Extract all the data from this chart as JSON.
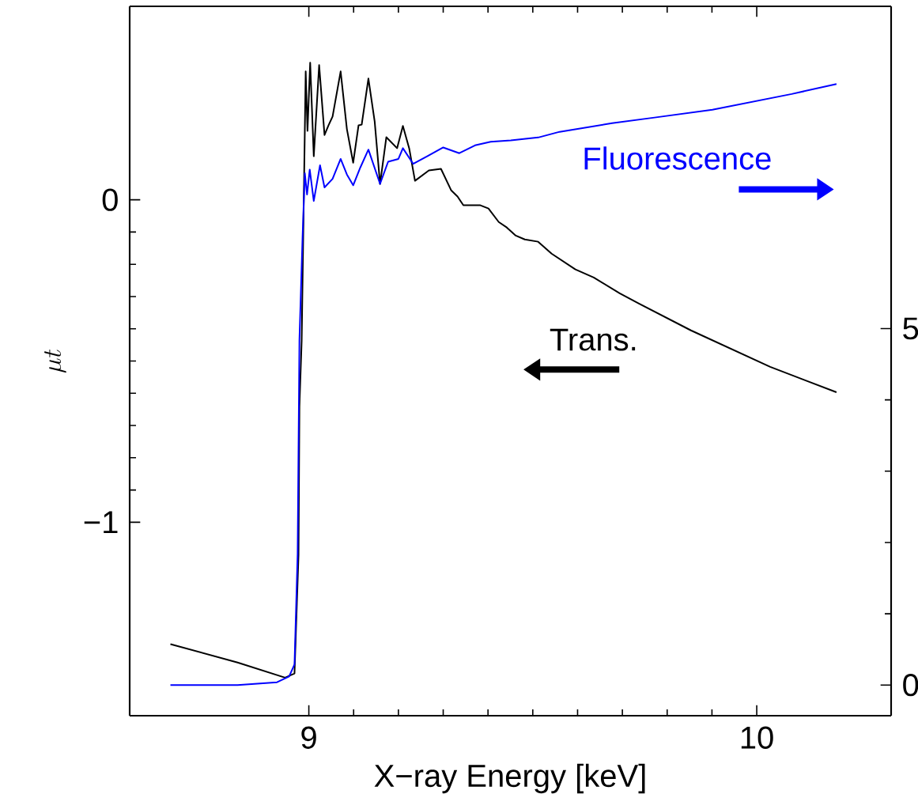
{
  "chart_data": {
    "type": "line",
    "xlabel": "X−ray Energy [keV]",
    "ylabel": "\\mu t",
    "xlim": [
      8.6,
      10.3
    ],
    "ylim": [
      -1.6,
      0.6
    ],
    "y2lim": [
      -0.43,
      9.52
    ],
    "xticks": [
      9,
      10
    ],
    "yticks": [
      {
        "value": -1,
        "label": "−1"
      },
      0
    ],
    "y2ticks": [
      0,
      5
    ],
    "series": [
      {
        "name": "Trans.",
        "color": "#000000",
        "x": [
          8.691,
          8.841,
          8.947,
          8.968,
          8.977,
          8.979,
          8.984,
          8.993,
          8.997,
          9.003,
          9.011,
          9.023,
          9.035,
          9.044,
          9.053,
          9.071,
          9.085,
          9.099,
          9.111,
          9.118,
          9.133,
          9.147,
          9.159,
          9.173,
          9.197,
          9.21,
          9.224,
          9.237,
          9.268,
          9.295,
          9.318,
          9.332,
          9.345,
          9.383,
          9.401,
          9.424,
          9.442,
          9.462,
          9.482,
          9.512,
          9.542,
          9.595,
          9.636,
          9.694,
          9.737,
          9.853,
          10.03,
          10.178
        ],
        "values": [
          -1.378,
          -1.435,
          -1.482,
          -1.469,
          -1.1,
          -0.641,
          -0.437,
          0.398,
          0.214,
          0.425,
          0.135,
          0.418,
          0.201,
          0.231,
          0.258,
          0.398,
          0.219,
          0.115,
          0.231,
          0.233,
          0.376,
          0.243,
          0.049,
          0.194,
          0.16,
          0.229,
          0.16,
          0.059,
          0.091,
          0.096,
          0.029,
          0.01,
          -0.017,
          -0.017,
          -0.027,
          -0.069,
          -0.086,
          -0.111,
          -0.123,
          -0.13,
          -0.167,
          -0.216,
          -0.241,
          -0.29,
          -0.322,
          -0.405,
          -0.518,
          -0.597
        ]
      },
      {
        "name": "Fluorescence",
        "color": "#0000ff",
        "axis": "y2",
        "x": [
          8.691,
          8.841,
          8.929,
          8.956,
          8.968,
          8.975,
          8.979,
          8.986,
          8.991,
          8.996,
          9.002,
          9.011,
          9.025,
          9.035,
          9.053,
          9.071,
          9.085,
          9.099,
          9.115,
          9.133,
          9.159,
          9.177,
          9.2,
          9.21,
          9.233,
          9.265,
          9.3,
          9.336,
          9.371,
          9.406,
          9.451,
          9.512,
          9.56,
          9.677,
          9.772,
          9.901,
          10.078,
          10.178
        ],
        "values": [
          0.0,
          0.0,
          0.04,
          0.12,
          0.29,
          1.84,
          4.84,
          6.29,
          7.18,
          6.88,
          7.23,
          6.79,
          7.29,
          6.98,
          7.1,
          7.38,
          7.16,
          7.01,
          7.26,
          7.51,
          7.03,
          7.34,
          7.38,
          7.53,
          7.31,
          7.42,
          7.54,
          7.46,
          7.57,
          7.62,
          7.64,
          7.68,
          7.76,
          7.88,
          7.96,
          8.07,
          8.29,
          8.43
        ]
      }
    ]
  }
}
